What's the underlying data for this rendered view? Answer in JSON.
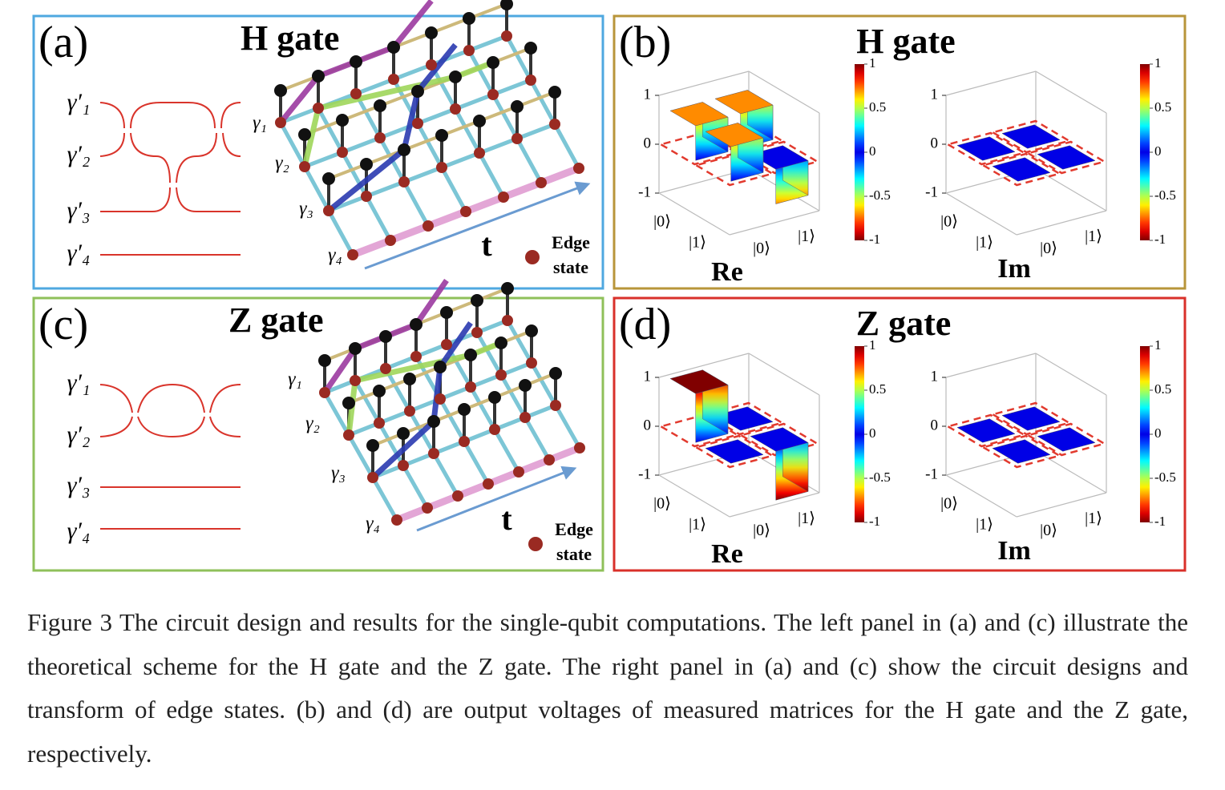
{
  "panels": [
    {
      "label": "(a)",
      "title": "H gate",
      "inputs": [
        "γ′₁",
        "γ′₂",
        "γ′₃",
        "γ′₄"
      ],
      "sites": [
        "γ₁",
        "γ₂",
        "γ₃",
        "γ₄"
      ],
      "time_label": "t",
      "legend": [
        "Edge",
        "state"
      ]
    },
    {
      "label": "(b)",
      "title": "H gate",
      "plots": [
        {
          "part": "Re",
          "matrix": [
            [
              0.71,
              0.71
            ],
            [
              0.71,
              -0.71
            ]
          ],
          "zlim": [
            -1,
            1
          ],
          "zticks": [
            1,
            0,
            -1
          ],
          "row_labels": [
            "|0⟩",
            "|1⟩"
          ],
          "col_labels": [
            "|0⟩",
            "|1⟩"
          ],
          "colorbar_lim": [
            -1,
            1
          ],
          "colorbar_ticks": [
            1,
            0.5,
            0,
            -0.5,
            -1
          ]
        },
        {
          "part": "Im",
          "matrix": [
            [
              0,
              0
            ],
            [
              0,
              0
            ]
          ],
          "zlim": [
            -1,
            1
          ],
          "zticks": [
            1,
            0,
            -1
          ],
          "row_labels": [
            "|0⟩",
            "|1⟩"
          ],
          "col_labels": [
            "|0⟩",
            "|1⟩"
          ],
          "colorbar_lim": [
            -1,
            1
          ],
          "colorbar_ticks": [
            1,
            0.5,
            0,
            -0.5,
            -1
          ]
        }
      ]
    },
    {
      "label": "(c)",
      "title": "Z gate",
      "inputs": [
        "γ′₁",
        "γ′₂",
        "γ′₃",
        "γ′₄"
      ],
      "sites": [
        "γ₁",
        "γ₂",
        "γ₃",
        "γ₄"
      ],
      "time_label": "t",
      "legend": [
        "Edge",
        "state"
      ]
    },
    {
      "label": "(d)",
      "title": "Z gate",
      "plots": [
        {
          "part": "Re",
          "matrix": [
            [
              1,
              0
            ],
            [
              0,
              -1
            ]
          ],
          "zlim": [
            -1,
            1
          ],
          "zticks": [
            1,
            0,
            -1
          ],
          "row_labels": [
            "|0⟩",
            "|1⟩"
          ],
          "col_labels": [
            "|0⟩",
            "|1⟩"
          ],
          "colorbar_lim": [
            -1,
            1
          ],
          "colorbar_ticks": [
            1,
            0.5,
            0,
            -0.5,
            -1
          ]
        },
        {
          "part": "Im",
          "matrix": [
            [
              0,
              0
            ],
            [
              0,
              0
            ]
          ],
          "zlim": [
            -1,
            1
          ],
          "zticks": [
            1,
            0,
            -1
          ],
          "row_labels": [
            "|0⟩",
            "|1⟩"
          ],
          "col_labels": [
            "|0⟩",
            "|1⟩"
          ],
          "colorbar_lim": [
            -1,
            1
          ],
          "colorbar_ticks": [
            1,
            0.5,
            0,
            -0.5,
            -1
          ]
        }
      ]
    }
  ],
  "caption": "Figure 3 The circuit design and results for the single-qubit computations. The left panel in (a) and (c) illustrate the theoretical scheme for the H gate and the Z gate. The right panel in (a) and (c) show the circuit designs and transform of edge states. (b) and (d) are output voltages of measured matrices for the H gate and the Z gate, respectively."
}
